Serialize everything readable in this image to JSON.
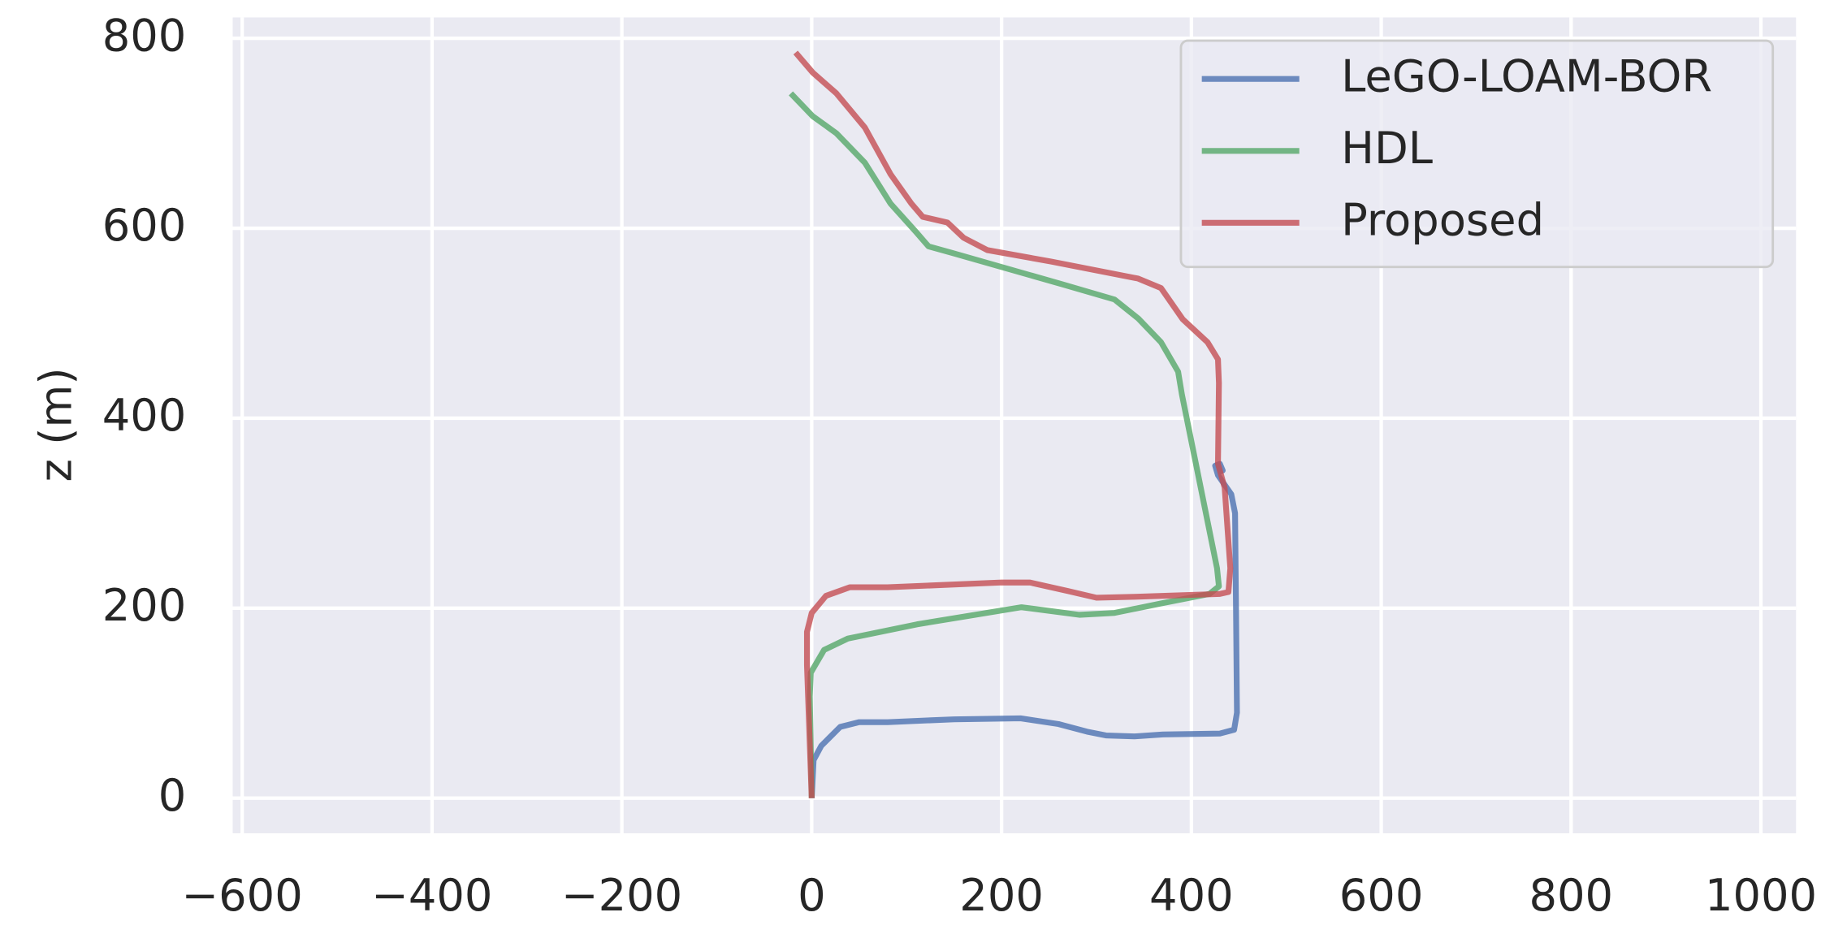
{
  "chart_data": {
    "type": "line",
    "y_label": "z (m)",
    "xlim": [
      -610,
      1037
    ],
    "ylim": [
      -37,
      822
    ],
    "xticks": [
      {
        "value": -600,
        "label": "−600"
      },
      {
        "value": -400,
        "label": "−400"
      },
      {
        "value": -200,
        "label": "−200"
      },
      0,
      200,
      400,
      600,
      800,
      1000
    ],
    "yticks": [
      0,
      200,
      400,
      600,
      800
    ],
    "grid": true,
    "legend": "upper right",
    "series": [
      {
        "name": "LeGO-LOAM-BOR",
        "color": "#4c72b0",
        "x": [
          0,
          2,
          10,
          20,
          30,
          50,
          80,
          150,
          220,
          260,
          290,
          310,
          340,
          370,
          430,
          445,
          448,
          447,
          446,
          442,
          435,
          428,
          425,
          430,
          433,
          426
        ],
        "y": [
          0,
          40,
          55,
          65,
          75,
          80,
          80,
          83,
          84,
          78,
          70,
          66,
          65,
          67,
          68,
          72,
          90,
          200,
          300,
          320,
          330,
          340,
          350,
          352,
          345,
          342
        ]
      },
      {
        "name": "HDL",
        "color": "#55a868",
        "x": [
          0,
          -2,
          -1,
          13,
          38,
          111,
          221,
          282,
          319,
          368,
          419,
          429,
          427,
          390,
          386,
          368,
          344,
          319,
          264,
          148,
          123,
          110,
          83,
          56,
          26,
          1,
          -22
        ],
        "y": [
          0,
          107,
          132,
          156,
          168,
          183,
          201,
          193,
          195,
          205,
          215,
          223,
          242,
          425,
          449,
          480,
          505,
          525,
          541,
          574,
          581,
          596,
          626,
          669,
          700,
          718,
          742
        ]
      },
      {
        "name": "Proposed",
        "color": "#c44e52",
        "x": [
          0,
          -5,
          -5,
          0,
          15,
          40,
          80,
          200,
          230,
          270,
          300,
          340,
          430,
          439,
          441,
          435,
          428,
          429,
          428,
          417,
          391,
          368,
          344,
          252,
          185,
          160,
          143,
          117,
          105,
          83,
          56,
          26,
          1,
          -17
        ],
        "y": [
          0,
          140,
          175,
          195,
          213,
          222,
          222,
          227,
          227,
          218,
          211,
          212,
          215,
          217,
          242,
          327,
          352,
          437,
          462,
          480,
          504,
          537,
          547,
          565,
          577,
          590,
          606,
          612,
          626,
          657,
          706,
          742,
          764,
          785
        ]
      }
    ]
  }
}
